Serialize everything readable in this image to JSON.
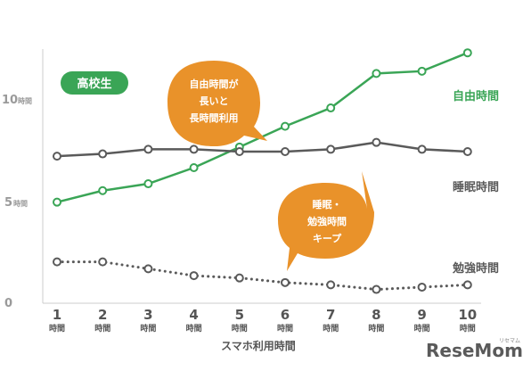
{
  "badge": {
    "label": "高校生",
    "color": "#3aa556"
  },
  "chart_data": {
    "type": "line",
    "title": "",
    "xlabel": "スマホ利用時間",
    "ylabel": "",
    "categories": [
      "1",
      "2",
      "3",
      "4",
      "5",
      "6",
      "7",
      "8",
      "9",
      "10"
    ],
    "x_tick_unit": "時間",
    "y_ticks": [
      {
        "value": 0,
        "label": "0",
        "unit": ""
      },
      {
        "value": 5,
        "label": "5",
        "unit": "時間"
      },
      {
        "value": 10,
        "label": "10",
        "unit": "時間"
      }
    ],
    "ylim": [
      0,
      12.5
    ],
    "grid": false,
    "series": [
      {
        "name": "自由時間",
        "color": "#3aa556",
        "style": "solid",
        "values": [
          4.4,
          4.9,
          5.2,
          5.9,
          6.8,
          7.7,
          8.5,
          10.0,
          10.1,
          10.9
        ]
      },
      {
        "name": "睡眠時間",
        "color": "#5a5a5a",
        "style": "solid",
        "values": [
          6.4,
          6.5,
          6.7,
          6.7,
          6.6,
          6.6,
          6.7,
          7.0,
          6.7,
          6.6
        ]
      },
      {
        "name": "勉強時間",
        "color": "#5a5a5a",
        "style": "dotted",
        "values": [
          1.8,
          1.8,
          1.5,
          1.2,
          1.1,
          0.9,
          0.8,
          0.6,
          0.7,
          0.8
        ]
      }
    ],
    "annotations": [
      {
        "lines": [
          "自由時間が",
          "長いと",
          "長時間利用"
        ],
        "color": "#e9922a"
      },
      {
        "lines": [
          "睡眠・",
          "勉強時間",
          "キープ"
        ],
        "color": "#e9922a"
      }
    ]
  },
  "logo": {
    "text": "ReseMom",
    "sub": "リセマム"
  }
}
